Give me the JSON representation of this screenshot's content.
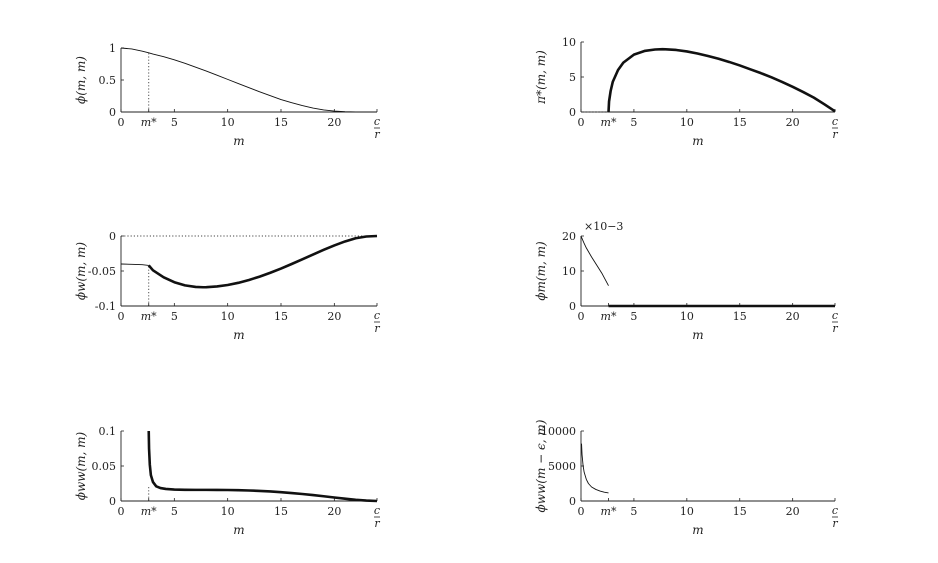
{
  "colors": {
    "ink": "#111111",
    "axis": "#222222",
    "background": "#ffffff"
  },
  "chart_data": [
    {
      "id": "p1",
      "type": "line",
      "ylabel": "ϕ(m, m)",
      "xlabel": "m",
      "xlim": [
        0,
        24
      ],
      "ylim": [
        0,
        1
      ],
      "xticks": [
        0,
        5,
        10,
        15,
        20
      ],
      "xtick_labels": [
        "0",
        "5",
        "10",
        "15",
        "20"
      ],
      "special_ticks": [
        {
          "x": 2.6,
          "label": "m*"
        },
        {
          "x": 24,
          "label": "c/r"
        }
      ],
      "yticks": [
        0,
        0.5,
        1
      ],
      "ytick_labels": [
        "0",
        "0.5",
        "1"
      ],
      "guides": [
        {
          "orient": "v",
          "x": 2.6,
          "y0": 0,
          "y1": 0.92
        }
      ],
      "series": [
        {
          "stroke": 0.9,
          "x": [
            0,
            1,
            2,
            2.6,
            3,
            4,
            5,
            6,
            7,
            8,
            9,
            10,
            11,
            12,
            13,
            14,
            15,
            16,
            17,
            18,
            19,
            20,
            21,
            22,
            23,
            24
          ],
          "y": [
            1.0,
            0.985,
            0.95,
            0.925,
            0.905,
            0.865,
            0.815,
            0.76,
            0.7,
            0.64,
            0.575,
            0.51,
            0.445,
            0.38,
            0.315,
            0.255,
            0.195,
            0.145,
            0.1,
            0.062,
            0.033,
            0.014,
            0.005,
            0.001,
            0.0,
            0.0
          ]
        }
      ]
    },
    {
      "id": "p2",
      "type": "line",
      "ylabel": "π*(m, m)",
      "xlabel": "m",
      "xlim": [
        0,
        24
      ],
      "ylim": [
        0,
        10
      ],
      "xticks": [
        0,
        5,
        10,
        15,
        20
      ],
      "xtick_labels": [
        "0",
        "5",
        "10",
        "15",
        "20"
      ],
      "special_ticks": [
        {
          "x": 2.6,
          "label": "m*"
        },
        {
          "x": 24,
          "label": "c/r"
        }
      ],
      "yticks": [
        0,
        5,
        10
      ],
      "ytick_labels": [
        "0",
        "5",
        "10"
      ],
      "guides": [
        {
          "orient": "h",
          "y": 0,
          "x0": 0,
          "x1": 2.6
        }
      ],
      "series": [
        {
          "stroke": 2.6,
          "x": [
            2.6,
            2.65,
            2.8,
            3,
            3.5,
            4,
            5,
            6,
            7,
            7.7,
            8,
            9,
            10,
            11,
            12,
            13,
            14,
            15,
            16,
            17,
            18,
            19,
            20,
            21,
            22,
            23,
            24
          ],
          "y": [
            0,
            1.5,
            3.0,
            4.3,
            6.0,
            7.05,
            8.2,
            8.72,
            8.93,
            8.97,
            8.96,
            8.86,
            8.65,
            8.36,
            8.0,
            7.6,
            7.15,
            6.65,
            6.1,
            5.55,
            4.95,
            4.3,
            3.6,
            2.85,
            2.05,
            1.1,
            0.1
          ]
        }
      ]
    },
    {
      "id": "p3",
      "type": "line",
      "ylabel": "ϕw(m, m)",
      "xlabel": "m",
      "xlim": [
        0,
        24
      ],
      "ylim": [
        -0.1,
        0
      ],
      "xticks": [
        0,
        5,
        10,
        15,
        20
      ],
      "xtick_labels": [
        "0",
        "5",
        "10",
        "15",
        "20"
      ],
      "special_ticks": [
        {
          "x": 2.6,
          "label": "m*"
        },
        {
          "x": 24,
          "label": "c/r"
        }
      ],
      "yticks": [
        -0.1,
        -0.05,
        0
      ],
      "ytick_labels": [
        "-0.1",
        "-0.05",
        "0"
      ],
      "guides": [
        {
          "orient": "v",
          "x": 2.6,
          "y0": -0.1,
          "y1": -0.042
        },
        {
          "orient": "h",
          "y": 0,
          "x0": 0,
          "x1": 24
        }
      ],
      "series": [
        {
          "stroke": 0.9,
          "x": [
            0,
            1,
            2,
            2.6
          ],
          "y": [
            -0.04,
            -0.0405,
            -0.041,
            -0.042
          ]
        },
        {
          "stroke": 2.6,
          "x": [
            2.6,
            3,
            4,
            5,
            6,
            7,
            7.7,
            8,
            9,
            10,
            11,
            12,
            13,
            14,
            15,
            16,
            17,
            18,
            19,
            20,
            21,
            22,
            23,
            24
          ],
          "y": [
            -0.042,
            -0.049,
            -0.059,
            -0.066,
            -0.0705,
            -0.0728,
            -0.0732,
            -0.0731,
            -0.0721,
            -0.07,
            -0.0669,
            -0.0628,
            -0.058,
            -0.0525,
            -0.0465,
            -0.04,
            -0.0333,
            -0.0265,
            -0.0198,
            -0.0135,
            -0.0078,
            -0.0032,
            -0.0007,
            0.0
          ]
        }
      ]
    },
    {
      "id": "p4",
      "type": "line",
      "ylabel": "ϕm(m, m)",
      "xlabel": "m",
      "xlim": [
        0,
        24
      ],
      "ylim": [
        0,
        20
      ],
      "scale_note": "×10−3",
      "xticks": [
        0,
        5,
        10,
        15,
        20
      ],
      "xtick_labels": [
        "0",
        "5",
        "10",
        "15",
        "20"
      ],
      "special_ticks": [
        {
          "x": 2.6,
          "label": "m*"
        },
        {
          "x": 24,
          "label": "c/r"
        }
      ],
      "yticks": [
        0,
        10,
        20
      ],
      "ytick_labels": [
        "0",
        "10",
        "20"
      ],
      "guides": [],
      "series": [
        {
          "stroke": 0.9,
          "x": [
            0,
            0.25,
            0.5,
            1,
            1.5,
            2,
            2.6
          ],
          "y": [
            20,
            18.2,
            16.6,
            14.0,
            11.6,
            9.2,
            5.8
          ]
        },
        {
          "stroke": 2.6,
          "x": [
            2.6,
            24
          ],
          "y": [
            0,
            0
          ]
        }
      ]
    },
    {
      "id": "p5",
      "type": "line",
      "ylabel": "ϕww(m, m)",
      "xlabel": "m",
      "xlim": [
        0,
        24
      ],
      "ylim": [
        0,
        0.1
      ],
      "xticks": [
        0,
        5,
        10,
        15,
        20
      ],
      "xtick_labels": [
        "0",
        "5",
        "10",
        "15",
        "20"
      ],
      "special_ticks": [
        {
          "x": 2.6,
          "label": "m*"
        },
        {
          "x": 24,
          "label": "c/r"
        }
      ],
      "yticks": [
        0,
        0.05,
        0.1
      ],
      "ytick_labels": [
        "0",
        "0.05",
        "0.1"
      ],
      "guides": [
        {
          "orient": "v",
          "x": 2.6,
          "y0": 0,
          "y1": 0.02
        }
      ],
      "series": [
        {
          "stroke": 2.6,
          "x": [
            2.6,
            2.63,
            2.7,
            2.8,
            3,
            3.3,
            3.7,
            4.2,
            5,
            6,
            7,
            8,
            9,
            10,
            11,
            12,
            13,
            14,
            15,
            16,
            17,
            18,
            19,
            20,
            21,
            22,
            23,
            24
          ],
          "y": [
            0.1,
            0.075,
            0.052,
            0.037,
            0.027,
            0.021,
            0.0185,
            0.0172,
            0.0163,
            0.016,
            0.0159,
            0.0159,
            0.0158,
            0.0157,
            0.0154,
            0.015,
            0.0144,
            0.0136,
            0.0126,
            0.0114,
            0.01,
            0.0085,
            0.0068,
            0.005,
            0.0033,
            0.0017,
            0.0006,
            0.0
          ]
        }
      ]
    },
    {
      "id": "p6",
      "type": "line",
      "ylabel": "ϕww(m − ϵ, m)",
      "xlabel": "m",
      "xlim": [
        0,
        24
      ],
      "ylim": [
        0,
        10000
      ],
      "xticks": [
        0,
        5,
        10,
        15,
        20
      ],
      "xtick_labels": [
        "0",
        "5",
        "10",
        "15",
        "20"
      ],
      "special_ticks": [
        {
          "x": 2.6,
          "label": "m*"
        },
        {
          "x": 24,
          "label": "c/r"
        }
      ],
      "yticks": [
        0,
        5000,
        10000
      ],
      "ytick_labels": [
        "0",
        "5000",
        "10000"
      ],
      "guides": [],
      "series": [
        {
          "stroke": 0.9,
          "x": [
            0.05,
            0.1,
            0.2,
            0.3,
            0.5,
            0.7,
            1,
            1.4,
            1.8,
            2.2,
            2.6
          ],
          "y": [
            8200,
            6600,
            5000,
            4100,
            3100,
            2500,
            2000,
            1650,
            1420,
            1260,
            1150
          ]
        }
      ]
    }
  ]
}
